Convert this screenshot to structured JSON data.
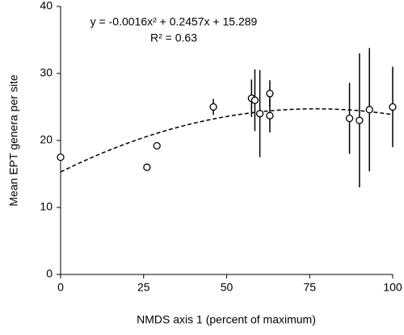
{
  "chart_data": {
    "type": "scatter",
    "x_label": "NMDS axis 1 (percent of maximum)",
    "y_label": "Mean EPT genera per site",
    "x": [
      0,
      26,
      29,
      46,
      57.5,
      58.5,
      60,
      63,
      63,
      87,
      90,
      93,
      100
    ],
    "values": [
      17.5,
      16,
      19.2,
      25,
      26.3,
      26,
      24,
      27,
      23.7,
      23.3,
      23,
      24.6,
      25
    ],
    "errors": [
      null,
      null,
      null,
      1.2,
      2.8,
      4.6,
      6.5,
      2,
      2.5,
      5.3,
      10,
      9.2,
      6
    ],
    "color": "#000000",
    "xlim": [
      0,
      100
    ],
    "xticks": [
      0,
      25,
      50,
      75,
      100
    ],
    "ylim": [
      0,
      40
    ],
    "yticks": [
      0,
      10,
      20,
      30,
      40
    ],
    "grid": false,
    "fit": {
      "equation": "y = -0.0016x² + 0.2457x + 15.289",
      "r2_label": "R² = 0.63",
      "coefficients": [
        -0.0016,
        0.2457,
        15.289
      ]
    }
  }
}
